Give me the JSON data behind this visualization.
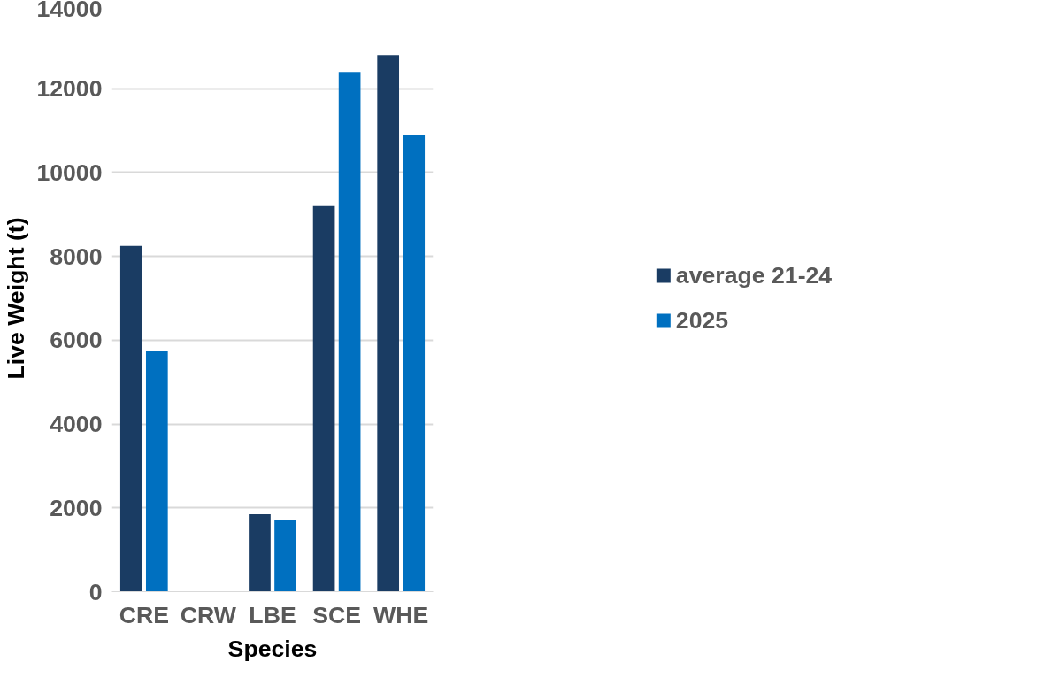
{
  "chart_data": {
    "type": "bar",
    "xlabel": "Species",
    "ylabel": "Live Weight (t)",
    "categories": [
      "CRE",
      "CRW",
      "LBE",
      "SCE",
      "WHE"
    ],
    "series": [
      {
        "name": "average 21-24",
        "color": "#1a3c63",
        "values": [
          8250,
          0,
          1850,
          9200,
          12800
        ]
      },
      {
        "name": "2025",
        "color": "#0070c0",
        "values": [
          5750,
          0,
          1700,
          12400,
          10900
        ]
      }
    ],
    "ylim": [
      0,
      14000
    ],
    "yticks": [
      0,
      2000,
      4000,
      6000,
      8000,
      10000,
      12000,
      14000
    ],
    "grid": "y",
    "legend": "right"
  }
}
